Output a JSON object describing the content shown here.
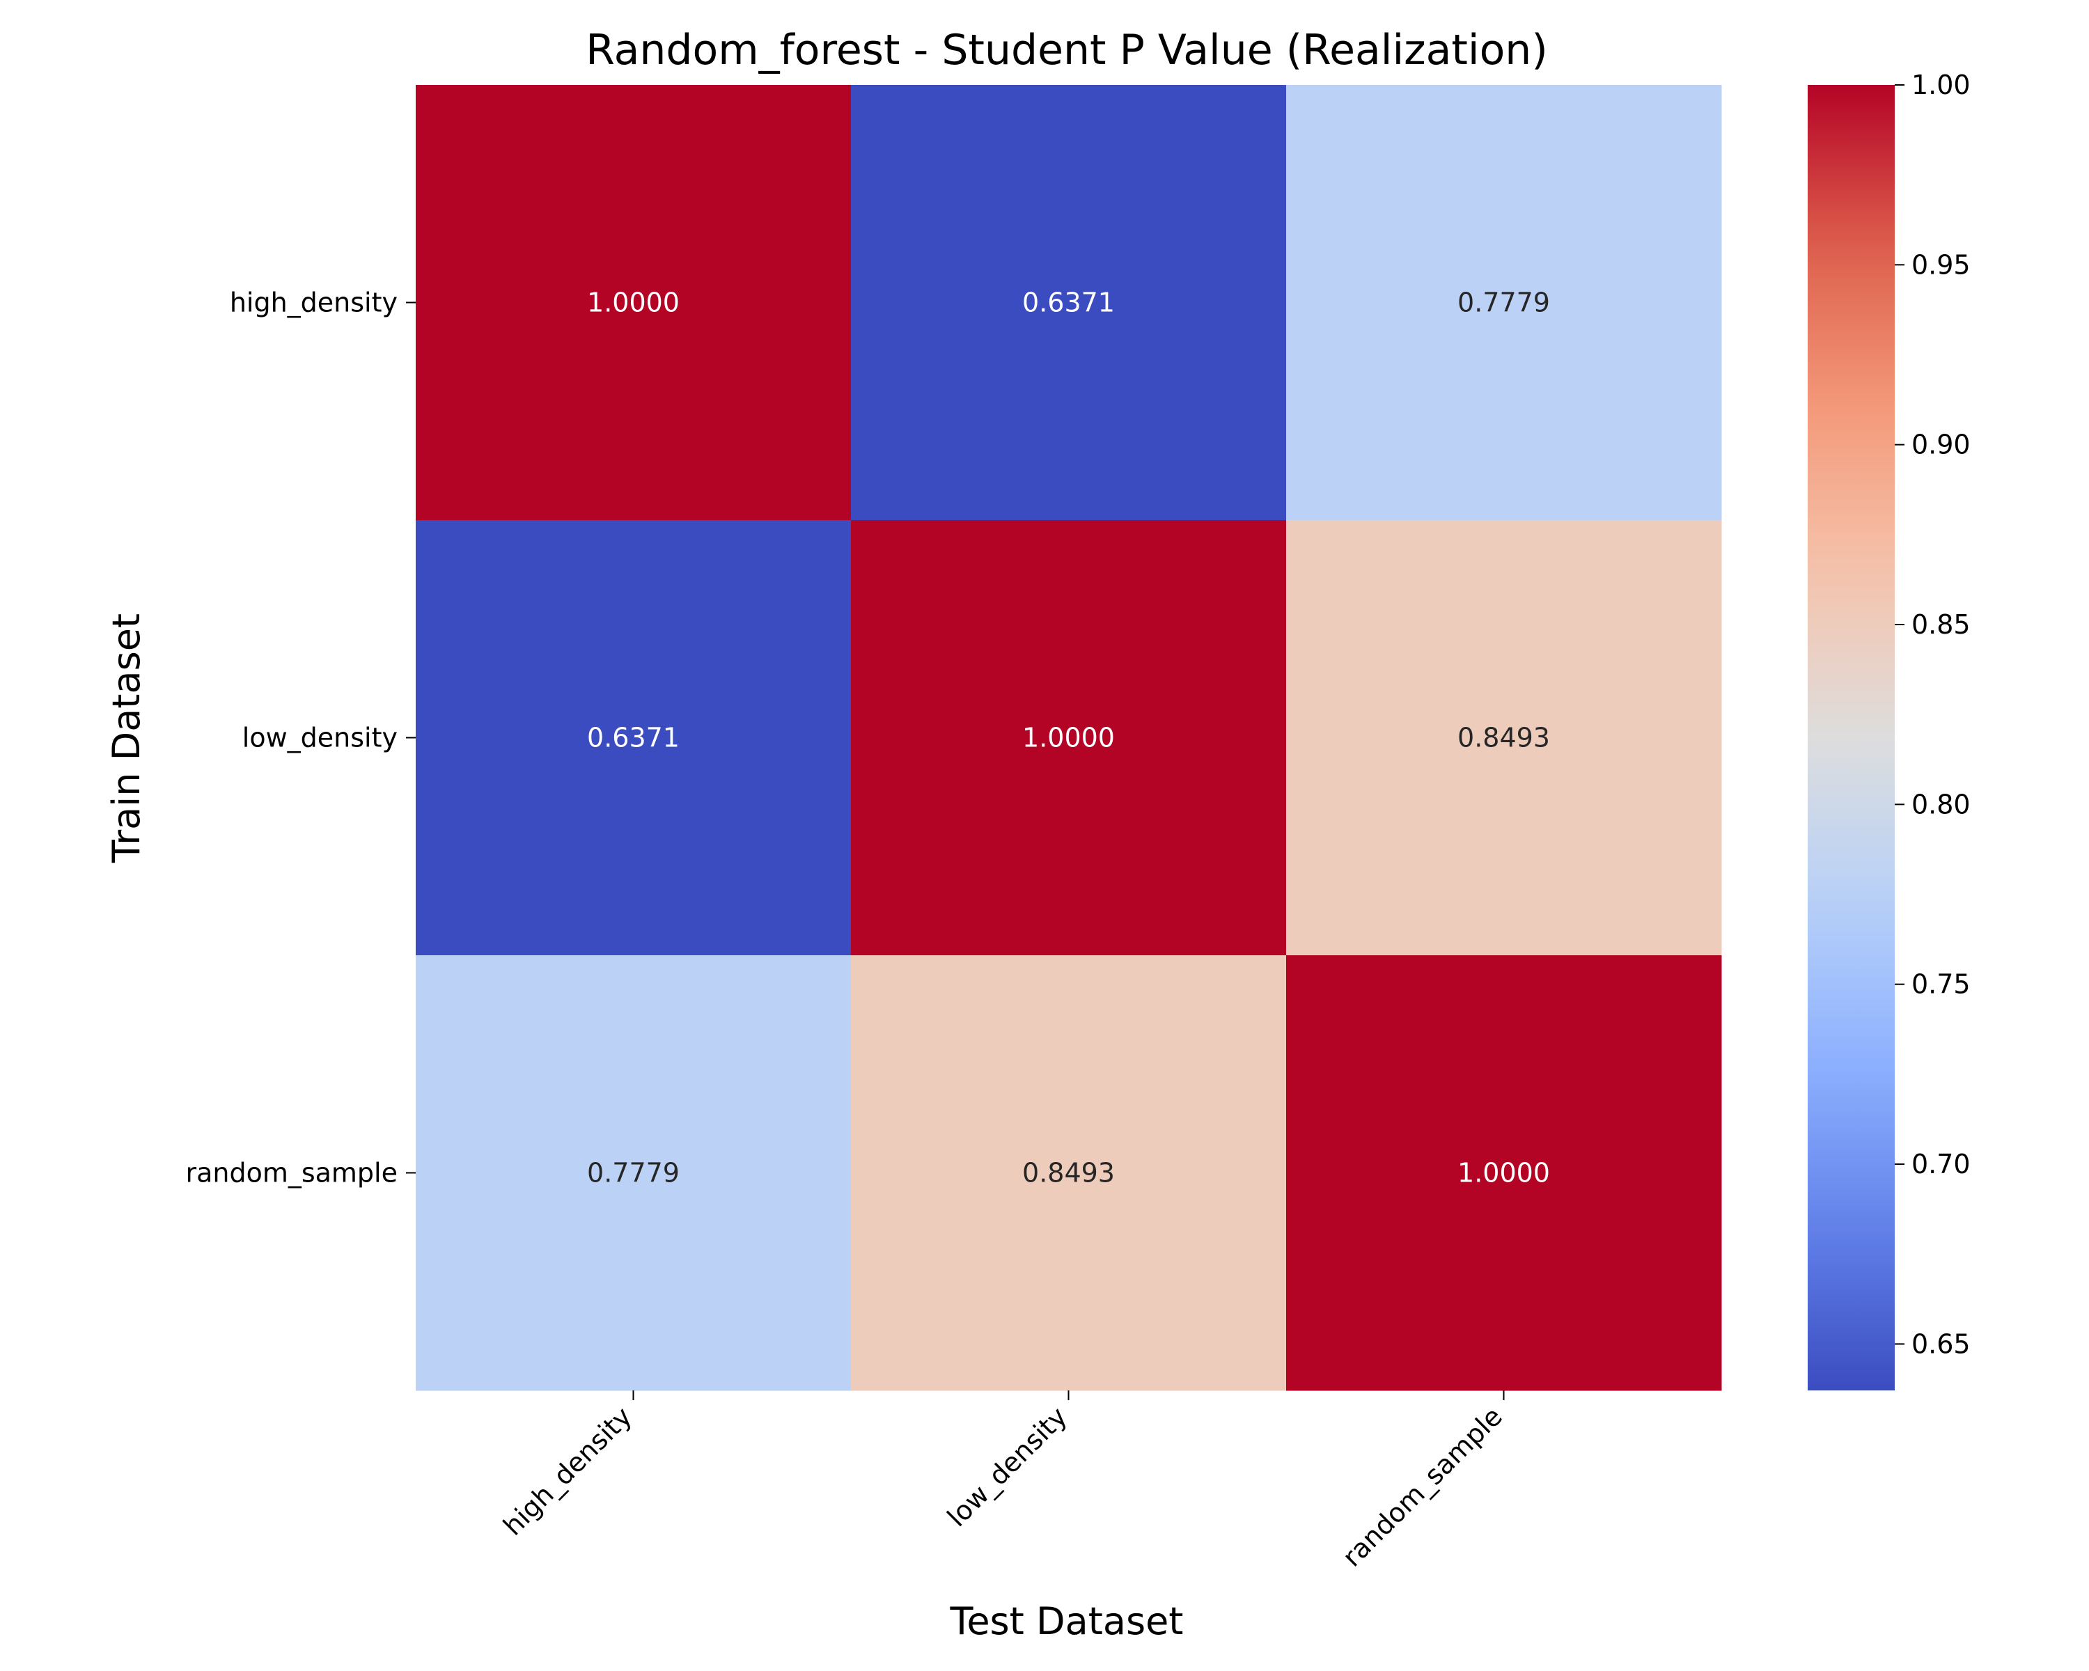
{
  "chart_data": {
    "type": "heatmap",
    "title": "Random_forest - Student P Value (Realization)",
    "xlabel": "Test Dataset",
    "ylabel": "Train Dataset",
    "x_categories": [
      "high_density",
      "low_density",
      "random_sample"
    ],
    "y_categories": [
      "high_density",
      "low_density",
      "random_sample"
    ],
    "values": [
      [
        1.0,
        0.6371,
        0.7779
      ],
      [
        0.6371,
        1.0,
        0.8493
      ],
      [
        0.7779,
        0.8493,
        1.0
      ]
    ],
    "cell_labels": [
      [
        "1.0000",
        "0.6371",
        "0.7779"
      ],
      [
        "0.6371",
        "1.0000",
        "0.8493"
      ],
      [
        "0.7779",
        "0.8493",
        "1.0000"
      ]
    ],
    "colormap": "coolwarm",
    "vmin": 0.6371,
    "vmax": 1.0,
    "colorbar_ticks": [
      "0.65",
      "0.70",
      "0.75",
      "0.80",
      "0.85",
      "0.90",
      "0.95",
      "1.00"
    ],
    "colorbar_tick_values": [
      0.65,
      0.7,
      0.75,
      0.8,
      0.85,
      0.9,
      0.95,
      1.0
    ],
    "grid": false,
    "colorbar_position": "right"
  }
}
